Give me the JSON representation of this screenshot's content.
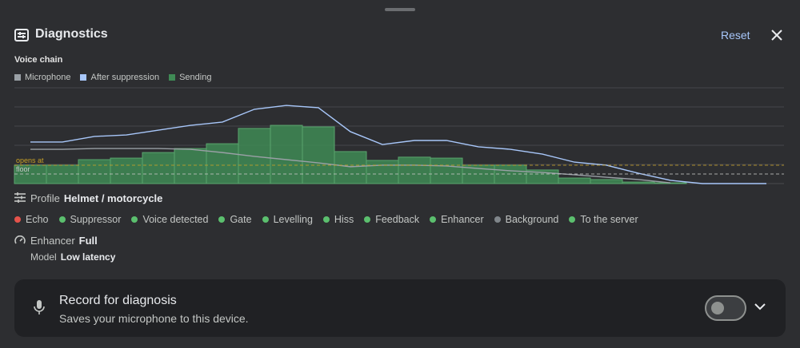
{
  "header": {
    "title": "Diagnostics",
    "reset": "Reset"
  },
  "chart_data": {
    "type": "bar",
    "title": "Voice chain",
    "categories": [
      null,
      null,
      null,
      null,
      null,
      null,
      null,
      null,
      null,
      null,
      null,
      null,
      null,
      null,
      null,
      null,
      null,
      null,
      null,
      null,
      null,
      null,
      null,
      null
    ],
    "series": [
      {
        "name": "Microphone",
        "color": "#9aa0a6",
        "type": "line",
        "values": [
          1.79,
          1.79,
          1.83,
          1.83,
          1.83,
          1.79,
          1.62,
          1.42,
          1.25,
          1.08,
          0.88,
          0.96,
          0.96,
          0.92,
          0.79,
          0.67,
          0.58,
          0.46,
          0.33,
          0.21,
          0.04,
          null,
          null,
          null
        ]
      },
      {
        "name": "After suppression",
        "color": "#a8c7fa",
        "type": "line",
        "values": [
          2.17,
          2.17,
          2.46,
          2.54,
          2.79,
          3.04,
          3.21,
          3.88,
          4.08,
          3.96,
          2.71,
          2.04,
          2.25,
          2.25,
          1.92,
          1.79,
          1.54,
          1.12,
          0.96,
          0.54,
          0.17,
          0,
          0,
          0
        ]
      },
      {
        "name": "Sending",
        "color": "#3f8a55",
        "type": "bar",
        "values": [
          0.96,
          0.96,
          1.25,
          1.33,
          1.62,
          1.83,
          2.08,
          2.88,
          3.04,
          2.96,
          1.67,
          1.21,
          1.38,
          1.33,
          0.96,
          0.96,
          0.71,
          0.29,
          0.21,
          0.08,
          0.04,
          null,
          null,
          null
        ]
      }
    ],
    "ylim": [
      0,
      5
    ],
    "grid_lines": [
      1,
      2,
      3,
      4,
      5
    ],
    "thresholds": [
      {
        "label": "opens at",
        "value": 0.96,
        "color": "#c9a227"
      },
      {
        "label": "floor",
        "value": 0.5,
        "color": "#c8c8c8"
      }
    ]
  },
  "profile": {
    "label": "Profile",
    "value": "Helmet / motorcycle"
  },
  "stages": [
    {
      "name": "Echo",
      "color": "#e5534b"
    },
    {
      "name": "Suppressor",
      "color": "#5bbf6e"
    },
    {
      "name": "Voice detected",
      "color": "#5bbf6e"
    },
    {
      "name": "Gate",
      "color": "#5bbf6e"
    },
    {
      "name": "Levelling",
      "color": "#5bbf6e"
    },
    {
      "name": "Hiss",
      "color": "#5bbf6e"
    },
    {
      "name": "Feedback",
      "color": "#5bbf6e"
    },
    {
      "name": "Enhancer",
      "color": "#5bbf6e"
    },
    {
      "name": "Background",
      "color": "#80868b"
    },
    {
      "name": "To the server",
      "color": "#5bbf6e"
    }
  ],
  "enhancer": {
    "label": "Enhancer",
    "value": "Full"
  },
  "model": {
    "label": "Model",
    "value": "Low latency"
  },
  "record": {
    "title": "Record for diagnosis",
    "subtitle": "Saves your microphone to this device.",
    "enabled": false
  }
}
